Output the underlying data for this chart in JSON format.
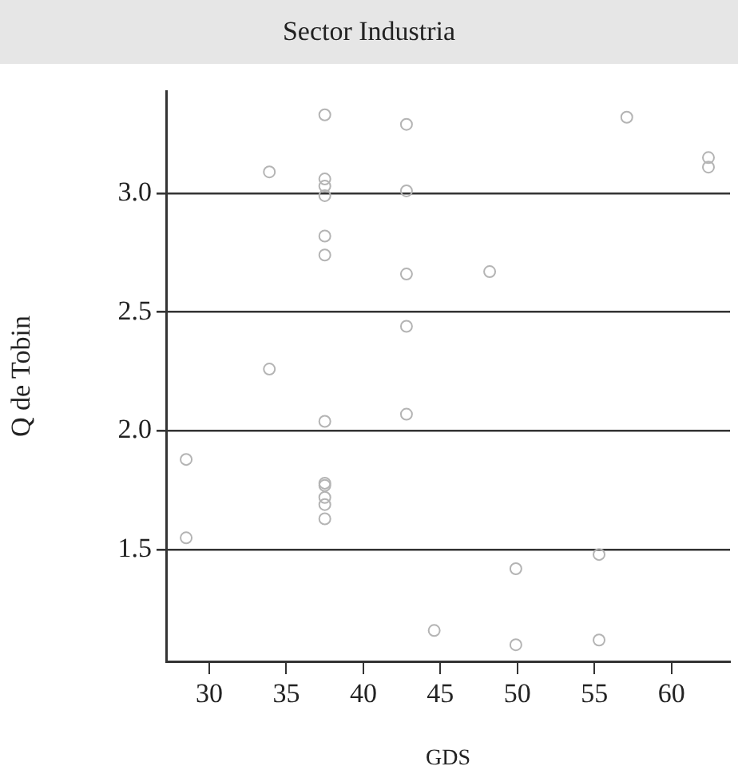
{
  "chart_data": {
    "type": "scatter",
    "title": "Sector Industria",
    "xlabel": "GDS",
    "ylabel": "Q de Tobin",
    "x": [
      37.5,
      42.8,
      33.9,
      37.5,
      37.5,
      37.5,
      42.8,
      37.5,
      37.5,
      42.8,
      42.8,
      33.9,
      37.5,
      42.8,
      28.5,
      28.5,
      37.5,
      37.5,
      37.5,
      37.5,
      37.5,
      44.6,
      49.9,
      55.3,
      49.9,
      55.3,
      57.1,
      62.4,
      62.4,
      48.2
    ],
    "values": [
      3.33,
      3.29,
      3.09,
      3.06,
      3.03,
      2.99,
      3.01,
      2.82,
      2.74,
      2.66,
      2.44,
      2.26,
      2.04,
      2.07,
      1.88,
      1.55,
      1.78,
      1.77,
      1.72,
      1.69,
      1.63,
      1.16,
      1.42,
      1.48,
      1.1,
      1.12,
      3.32,
      3.15,
      3.11,
      2.67
    ],
    "color": "#b4b4b4",
    "marker": "circle",
    "xlim": [
      27.2,
      63.8
    ],
    "xticks": [
      30,
      35,
      40,
      45,
      50,
      55,
      60
    ],
    "ylim": [
      1.03,
      3.43
    ],
    "yticks": [
      {
        "value": 1.5,
        "label": "1.5"
      },
      {
        "value": 2,
        "label": "2.0"
      },
      {
        "value": 2.5,
        "label": "2.5"
      },
      {
        "value": 3,
        "label": "3.0"
      }
    ],
    "grid": "y"
  }
}
